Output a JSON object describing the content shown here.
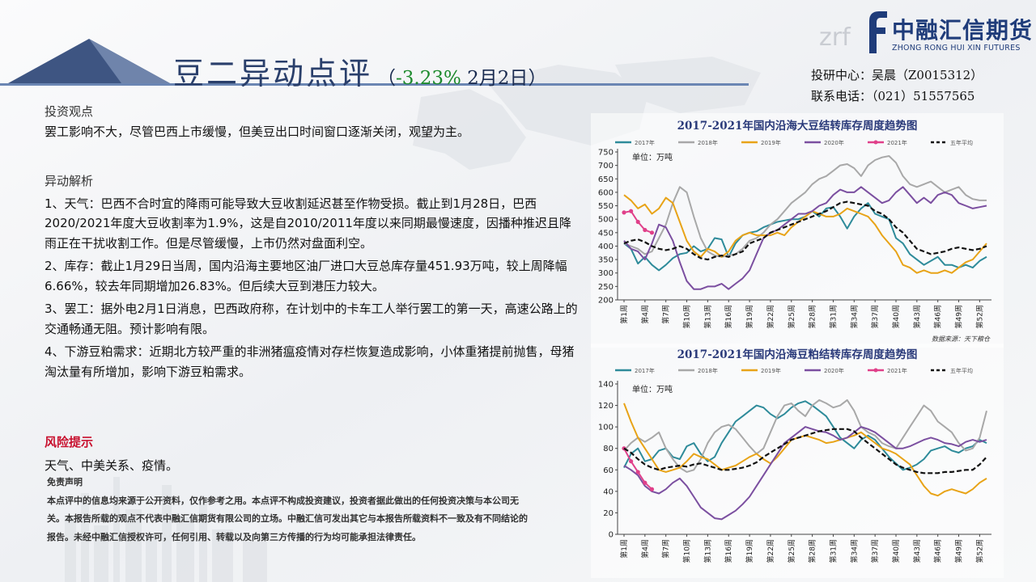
{
  "header": {
    "title": "豆二异动点评",
    "subtitle_open": "（",
    "pct": "-3.23%",
    "date": " 2月2日",
    "subtitle_close": "）"
  },
  "logo": {
    "cn": "中融汇信期货",
    "en": "ZHONG RONG HUI XIN FUTURES",
    "mark": "zrf"
  },
  "contact": {
    "research": "投研中心：吴晨（Z0015312）",
    "phone": "联系电话：（021）51557565"
  },
  "content": {
    "view_heading": "投资观点",
    "view_text": "罢工影响不大，尽管巴西上市缓慢，但美豆出口时间窗口逐渐关闭，观望为主。",
    "analysis_heading": "异动解析",
    "items": [
      "1、天气：巴西不合时宜的降雨可能导致大豆收割延迟甚至作物受损。截止到1月28日，巴西2020/2021年度大豆收割率为1.9%，这是自2010/2011年度以来同期最慢速度，因播种推迟且降雨正在干扰收割工作。但是尽管缓慢，上市仍然对盘面利空。",
      "2、库存：截止1月29日当周，国内沿海主要地区油厂进口大豆总库存量451.93万吨，较上周降幅6.66%，较去年同期增加26.83%。但后续大豆到港压力较大。",
      "3、罢工：据外电2月1日消息，巴西政府称，在计划中的卡车工人举行罢工的第一天，高速公路上的交通畅通无阻。预计影响有限。",
      "4、下游豆粕需求：近期北方较严重的非洲猪瘟疫情对存栏恢复造成影响，小体重猪提前抛售，母猪淘汰量有所增加，影响下游豆粕需求。"
    ],
    "risk_heading": "风险提示",
    "risk_text": "天气、中美关系、疫情。",
    "disclaimer_heading": "免责声明",
    "disclaimer_text": "本点评中的信息均来源于公开资料，仅作参考之用。本点评不构成投资建议，投资者据此做出的任何投资决策与本公司无关。本报告所载的观点不代表中融汇信期货有限公司的立场。中融汇信可发出其它与本报告所载资料不一致及有不同结论的报告。未经中融汇信授权许可，任何引用、转载以及向第三方传播的行为均可能承担法律责任。"
  },
  "colors": {
    "s2017": "#2e8b9a",
    "s2018": "#a8a8a8",
    "s2019": "#e8a317",
    "s2020": "#7b4fa0",
    "s2021": "#e0408a",
    "avg": "#111111",
    "title": "#2a3f6b",
    "pct": "#1c8a2c",
    "risk": "#c8102e"
  },
  "chart_data": [
    {
      "type": "line",
      "title": "2017-2021年国内沿海大豆结转库存周度趋势图",
      "unit": "单位：万吨",
      "source": "数据来源：天下粮仓",
      "ylim": [
        200,
        750
      ],
      "yticks": [
        200,
        250,
        300,
        350,
        400,
        450,
        500,
        550,
        600,
        650,
        700,
        750
      ],
      "xticks": [
        "第1周",
        "第4周",
        "第7周",
        "第10周",
        "第13周",
        "第16周",
        "第19周",
        "第22周",
        "第25周",
        "第28周",
        "第31周",
        "第34周",
        "第37周",
        "第40周",
        "第43周",
        "第46周",
        "第49周",
        "第52周"
      ],
      "legend": [
        "2017年",
        "2018年",
        "2019年",
        "2020年",
        "2021年",
        "五年平均"
      ],
      "series": [
        {
          "name": "2017年",
          "key": "s2017",
          "values": [
            410,
            390,
            335,
            360,
            330,
            310,
            330,
            355,
            370,
            375,
            400,
            380,
            390,
            430,
            425,
            360,
            410,
            440,
            450,
            455,
            470,
            480,
            490,
            495,
            500,
            500,
            510,
            530,
            510,
            540,
            545,
            510,
            465,
            510,
            540,
            560,
            520,
            510,
            500,
            430,
            410,
            370,
            350,
            330,
            345,
            360,
            330,
            330,
            320,
            330,
            320,
            345,
            360
          ]
        },
        {
          "name": "2018年",
          "key": "s2018",
          "values": [
            410,
            400,
            390,
            370,
            380,
            430,
            480,
            560,
            620,
            600,
            510,
            430,
            380,
            365,
            360,
            365,
            370,
            390,
            420,
            430,
            450,
            480,
            500,
            530,
            560,
            580,
            600,
            630,
            650,
            660,
            680,
            700,
            705,
            690,
            660,
            700,
            720,
            730,
            735,
            710,
            660,
            630,
            620,
            630,
            640,
            620,
            600,
            610,
            620,
            590,
            575,
            570,
            570
          ]
        },
        {
          "name": "2019年",
          "key": "s2019",
          "values": [
            590,
            570,
            540,
            555,
            520,
            540,
            580,
            560,
            490,
            420,
            380,
            360,
            390,
            380,
            360,
            380,
            420,
            440,
            450,
            440,
            440,
            440,
            450,
            440,
            470,
            490,
            510,
            530,
            520,
            510,
            510,
            520,
            540,
            530,
            520,
            510,
            480,
            440,
            410,
            380,
            330,
            320,
            300,
            310,
            300,
            300,
            310,
            300,
            320,
            340,
            350,
            380,
            410
          ]
        },
        {
          "name": "2020年",
          "key": "s2020",
          "values": [
            420,
            390,
            380,
            350,
            410,
            480,
            470,
            420,
            340,
            270,
            240,
            240,
            250,
            250,
            260,
            240,
            260,
            280,
            310,
            370,
            430,
            450,
            460,
            480,
            500,
            520,
            520,
            530,
            550,
            560,
            590,
            610,
            600,
            600,
            620,
            600,
            580,
            560,
            570,
            600,
            620,
            590,
            560,
            580,
            560,
            590,
            600,
            590,
            560,
            550,
            540,
            545,
            550
          ]
        },
        {
          "name": "2021年",
          "key": "s2021",
          "values": [
            525,
            530,
            490,
            460,
            450
          ]
        },
        {
          "name": "五年平均",
          "key": "avg",
          "values": [
            410,
            420,
            425,
            415,
            400,
            390,
            385,
            390,
            400,
            390,
            370,
            355,
            350,
            360,
            365,
            360,
            370,
            380,
            410,
            420,
            430,
            450,
            460,
            470,
            480,
            490,
            500,
            510,
            520,
            530,
            545,
            560,
            565,
            560,
            555,
            550,
            530,
            520,
            500,
            470,
            450,
            420,
            390,
            380,
            370,
            375,
            380,
            390,
            395,
            390,
            385,
            390,
            400
          ]
        }
      ]
    },
    {
      "type": "line",
      "title": "2017-2021年国内沿海豆粕结转库存周度趋势图",
      "unit": "单位：万吨",
      "ylim": [
        0,
        140
      ],
      "yticks": [
        0,
        20,
        40,
        60,
        80,
        100,
        120,
        140
      ],
      "xticks": [
        "第1周",
        "第4周",
        "第7周",
        "第10周",
        "第13周",
        "第16周",
        "第19周",
        "第22周",
        "第25周",
        "第28周",
        "第31周",
        "第34周",
        "第37周",
        "第40周",
        "第43周",
        "第46周",
        "第49周",
        "第52周"
      ],
      "legend": [
        "2017年",
        "2018年",
        "2019年",
        "2020年",
        "2021年",
        "五年平均"
      ],
      "series": [
        {
          "name": "2017年",
          "key": "s2017",
          "values": [
            62,
            75,
            80,
            68,
            70,
            78,
            80,
            72,
            70,
            82,
            85,
            75,
            68,
            72,
            85,
            95,
            105,
            110,
            115,
            120,
            118,
            112,
            108,
            112,
            118,
            122,
            124,
            120,
            115,
            110,
            100,
            90,
            85,
            80,
            88,
            92,
            88,
            80,
            72,
            66,
            60,
            62,
            65,
            70,
            78,
            80,
            82,
            78,
            76,
            80,
            82,
            88,
            85
          ]
        },
        {
          "name": "2018年",
          "key": "s2018",
          "values": [
            78,
            85,
            90,
            86,
            90,
            95,
            80,
            70,
            62,
            58,
            60,
            70,
            85,
            95,
            100,
            102,
            98,
            90,
            82,
            75,
            80,
            95,
            110,
            120,
            122,
            115,
            110,
            120,
            125,
            122,
            118,
            120,
            125,
            115,
            100,
            95,
            92,
            85,
            82,
            80,
            90,
            100,
            110,
            120,
            115,
            105,
            100,
            95,
            85,
            78,
            80,
            90,
            115
          ]
        },
        {
          "name": "2019年",
          "key": "s2019",
          "values": [
            122,
            105,
            90,
            80,
            70,
            60,
            58,
            60,
            62,
            68,
            75,
            72,
            70,
            65,
            60,
            62,
            64,
            68,
            72,
            75,
            70,
            66,
            72,
            80,
            88,
            90,
            92,
            90,
            88,
            85,
            86,
            88,
            90,
            92,
            95,
            90,
            85,
            80,
            78,
            75,
            70,
            65,
            55,
            45,
            38,
            36,
            40,
            42,
            40,
            38,
            42,
            48,
            52
          ]
        },
        {
          "name": "2020年",
          "key": "s2020",
          "values": [
            64,
            60,
            55,
            45,
            40,
            38,
            42,
            48,
            52,
            45,
            35,
            25,
            20,
            15,
            14,
            18,
            22,
            28,
            35,
            45,
            55,
            65,
            75,
            85,
            90,
            95,
            100,
            98,
            96,
            95,
            92,
            88,
            90,
            95,
            100,
            98,
            95,
            90,
            85,
            80,
            80,
            82,
            85,
            88,
            90,
            88,
            85,
            84,
            82,
            86,
            88,
            86,
            88
          ]
        },
        {
          "name": "2021年",
          "key": "s2021",
          "values": [
            80,
            68,
            58,
            48,
            42
          ]
        },
        {
          "name": "五年平均",
          "key": "avg",
          "values": [
            80,
            76,
            70,
            65,
            62,
            60,
            62,
            63,
            64,
            63,
            65,
            66,
            64,
            62,
            60,
            60,
            61,
            62,
            64,
            67,
            72,
            76,
            80,
            84,
            88,
            90,
            92,
            94,
            96,
            97,
            98,
            98,
            98,
            96,
            90,
            85,
            80,
            75,
            70,
            65,
            62,
            60,
            58,
            57,
            57,
            57,
            58,
            58,
            59,
            60,
            60,
            65,
            72
          ]
        }
      ]
    }
  ]
}
